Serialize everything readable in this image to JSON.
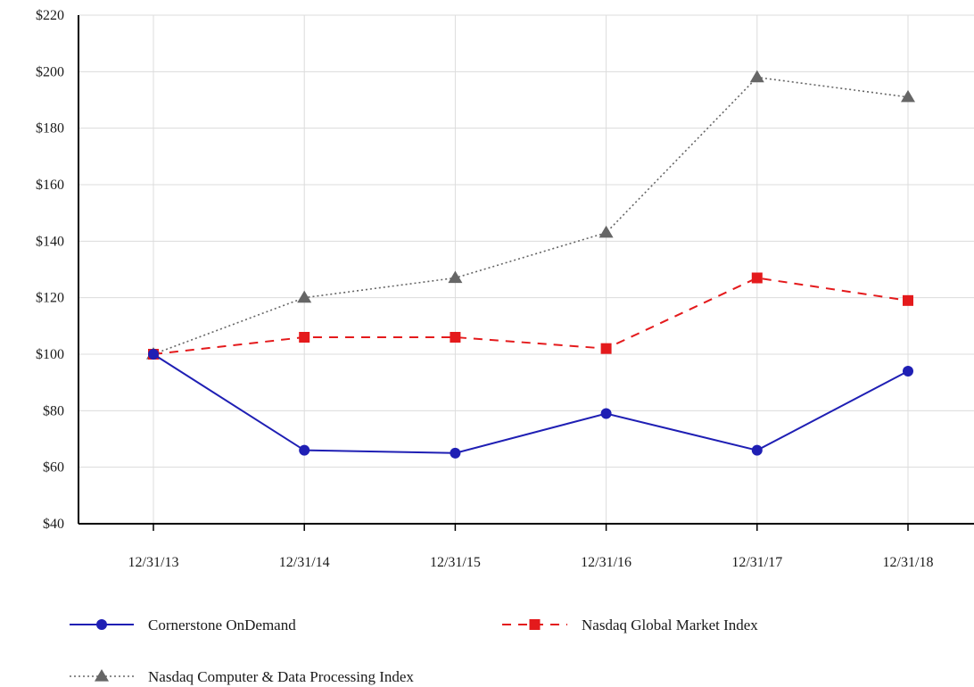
{
  "chart_data": {
    "type": "line",
    "title": "",
    "xlabel": "",
    "ylabel": "",
    "categories": [
      "12/31/13",
      "12/31/14",
      "12/31/15",
      "12/31/16",
      "12/31/17",
      "12/31/18"
    ],
    "ylim": [
      40,
      220
    ],
    "yticks": [
      "$40",
      "$60",
      "$80",
      "$100",
      "$120",
      "$140",
      "$160",
      "$180",
      "$200",
      "$220"
    ],
    "grid": true,
    "legend_position": "bottom",
    "series": [
      {
        "name": "Cornerstone OnDemand",
        "values": [
          100,
          66,
          65,
          79,
          66,
          94
        ],
        "color": "#1f1fb4",
        "line_style": "solid",
        "marker": "circle"
      },
      {
        "name": "Nasdaq Global Market Index",
        "values": [
          100,
          106,
          106,
          102,
          127,
          119
        ],
        "color": "#e41a1c",
        "line_style": "dashed",
        "marker": "square"
      },
      {
        "name": "Nasdaq Computer & Data Processing Index",
        "values": [
          100,
          120,
          127,
          143,
          198,
          191
        ],
        "color": "#666666",
        "line_style": "dotted",
        "marker": "triangle"
      }
    ]
  }
}
